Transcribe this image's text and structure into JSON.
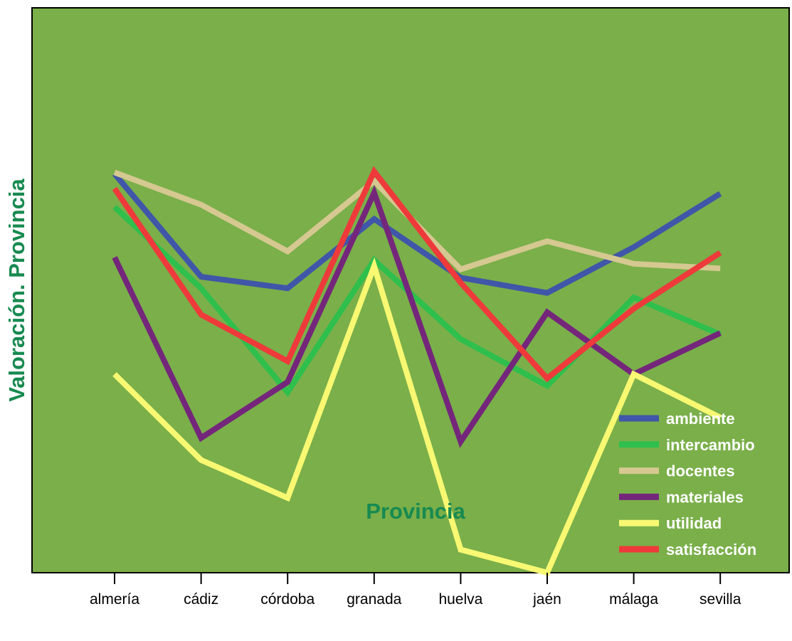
{
  "chart_data": {
    "type": "line",
    "xlabel": "Provincia",
    "ylabel": "Valoración. Provincia",
    "categories": [
      "almería",
      "cádiz",
      "córdoba",
      "granada",
      "huelva",
      "jaén",
      "málaga",
      "sevilla"
    ],
    "ylim": [
      0,
      100
    ],
    "y_ticks_shown": false,
    "grid": false,
    "legend_position": "bottom-right",
    "plot_background": "#7aaf4a",
    "axis_title_color": "#178a50",
    "series": [
      {
        "name": "ambiente",
        "color": "#4056a8",
        "values": [
          86.4,
          64.1,
          61.6,
          76.6,
          63.9,
          60.6,
          70.5,
          82.1
        ]
      },
      {
        "name": "intercambio",
        "color": "#2fbf4d",
        "values": [
          79.2,
          61.6,
          39.1,
          67.7,
          50.6,
          40.5,
          59.6,
          51.6
        ]
      },
      {
        "name": "docentes",
        "color": "#d5c890",
        "values": [
          86.7,
          79.7,
          69.6,
          84.8,
          65.7,
          71.8,
          66.9,
          65.9
        ]
      },
      {
        "name": "materiales",
        "color": "#74267b",
        "values": [
          68.3,
          29.2,
          41.3,
          82.3,
          28.4,
          56.4,
          43.0,
          51.9
        ]
      },
      {
        "name": "utilidad",
        "color": "#f8f872",
        "values": [
          43.0,
          24.4,
          16.2,
          66.4,
          5.0,
          0.0,
          43.0,
          33.6
        ]
      },
      {
        "name": "satisfacción",
        "color": "#ee3a3a",
        "values": [
          83.2,
          55.9,
          45.8,
          86.9,
          62.8,
          42.1,
          57.2,
          69.3
        ]
      }
    ]
  }
}
